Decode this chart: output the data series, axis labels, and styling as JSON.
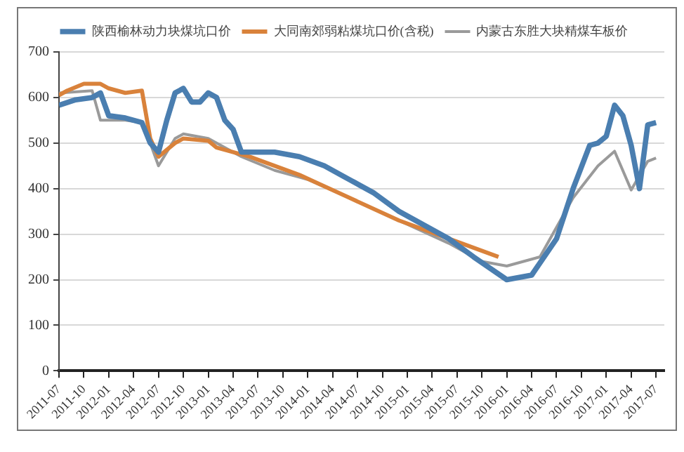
{
  "chart_data": {
    "type": "line",
    "xlim": [
      "2011-07",
      "2017-08"
    ],
    "xticks": [
      "2011-07",
      "2011-10",
      "2012-01",
      "2012-04",
      "2012-07",
      "2012-10",
      "2013-01",
      "2013-04",
      "2013-07",
      "2013-10",
      "2014-01",
      "2014-04",
      "2014-07",
      "2014-10",
      "2015-01",
      "2015-04",
      "2015-07",
      "2015-10",
      "2016-01",
      "2016-04",
      "2016-07",
      "2016-10",
      "2017-01",
      "2017-04",
      "2017-07"
    ],
    "ylim": [
      0,
      700
    ],
    "yticks": [
      0,
      100,
      200,
      300,
      400,
      500,
      600,
      700
    ],
    "grid": "y",
    "legend": "top",
    "marker": "none",
    "line_style": "solid",
    "series": [
      {
        "name": "陕西榆林动力块煤坑口价",
        "color": "#4a7eb0",
        "x": [
          "2011-07",
          "2011-09",
          "2011-11",
          "2011-12",
          "2012-01",
          "2012-03",
          "2012-05",
          "2012-06",
          "2012-07",
          "2012-08",
          "2012-09",
          "2012-10",
          "2012-11",
          "2012-12",
          "2013-01",
          "2013-02",
          "2013-03",
          "2013-04",
          "2013-05",
          "2013-09",
          "2013-12",
          "2014-03",
          "2014-06",
          "2014-09",
          "2014-12",
          "2015-03",
          "2015-06",
          "2015-09",
          "2016-01",
          "2016-04",
          "2016-07",
          "2016-09",
          "2016-11",
          "2016-12",
          "2017-01",
          "2017-02",
          "2017-03",
          "2017-04",
          "2017-05",
          "2017-06",
          "2017-07"
        ],
        "values": [
          583,
          595,
          600,
          610,
          560,
          555,
          545,
          500,
          480,
          550,
          610,
          620,
          590,
          590,
          610,
          600,
          550,
          530,
          480,
          480,
          470,
          450,
          420,
          390,
          350,
          320,
          290,
          250,
          200,
          210,
          290,
          400,
          495,
          500,
          515,
          583,
          560,
          495,
          400,
          540,
          545
        ]
      },
      {
        "name": "大同南郊弱粘煤坑口价(含税)",
        "color": "#d9823b",
        "x": [
          "2011-07",
          "2011-08",
          "2011-10",
          "2011-12",
          "2012-01",
          "2012-03",
          "2012-05",
          "2012-06",
          "2012-07",
          "2012-09",
          "2012-10",
          "2013-01",
          "2013-02",
          "2013-06",
          "2013-12",
          "2014-06",
          "2014-12",
          "2015-06",
          "2015-12"
        ],
        "values": [
          605,
          615,
          630,
          630,
          620,
          610,
          615,
          510,
          470,
          500,
          510,
          505,
          490,
          470,
          430,
          380,
          330,
          290,
          250
        ]
      },
      {
        "name": "内蒙古东胜大块精煤车板价",
        "color": "#9a9a9a",
        "x": [
          "2011-07",
          "2011-11",
          "2011-12",
          "2012-03",
          "2012-05",
          "2012-06",
          "2012-07",
          "2012-09",
          "2012-10",
          "2013-01",
          "2013-02",
          "2013-05",
          "2013-09",
          "2014-01",
          "2014-06",
          "2014-12",
          "2015-06",
          "2015-10",
          "2016-01",
          "2016-05",
          "2016-09",
          "2016-12",
          "2017-02",
          "2017-04",
          "2017-06",
          "2017-07"
        ],
        "values": [
          610,
          615,
          550,
          550,
          545,
          500,
          450,
          510,
          520,
          510,
          500,
          470,
          440,
          420,
          380,
          330,
          280,
          240,
          230,
          250,
          380,
          450,
          482,
          397,
          460,
          467
        ]
      }
    ]
  }
}
